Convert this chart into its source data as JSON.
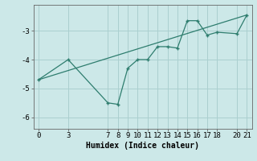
{
  "xlabel": "Humidex (Indice chaleur)",
  "bg_color": "#cce8e8",
  "line_color": "#2e7d6e",
  "grid_color": "#aacfcf",
  "spine_color": "#666666",
  "xlim": [
    -0.5,
    21.5
  ],
  "ylim": [
    -6.4,
    -2.1
  ],
  "xticks": [
    0,
    3,
    7,
    8,
    9,
    10,
    11,
    12,
    13,
    14,
    15,
    16,
    17,
    18,
    20,
    21
  ],
  "yticks": [
    -6,
    -5,
    -4,
    -3
  ],
  "data_line": {
    "x": [
      0,
      3,
      7,
      8,
      9,
      10,
      11,
      12,
      13,
      14,
      15,
      16,
      17,
      18,
      20,
      21
    ],
    "y": [
      -4.7,
      -4.0,
      -5.5,
      -5.55,
      -4.3,
      -4.0,
      -4.0,
      -3.55,
      -3.55,
      -3.6,
      -2.65,
      -2.65,
      -3.15,
      -3.05,
      -3.1,
      -2.45
    ]
  },
  "trend_line": {
    "x": [
      0,
      21
    ],
    "y": [
      -4.7,
      -2.45
    ]
  },
  "font_family": "monospace",
  "label_fontsize": 7,
  "tick_fontsize": 6.5
}
